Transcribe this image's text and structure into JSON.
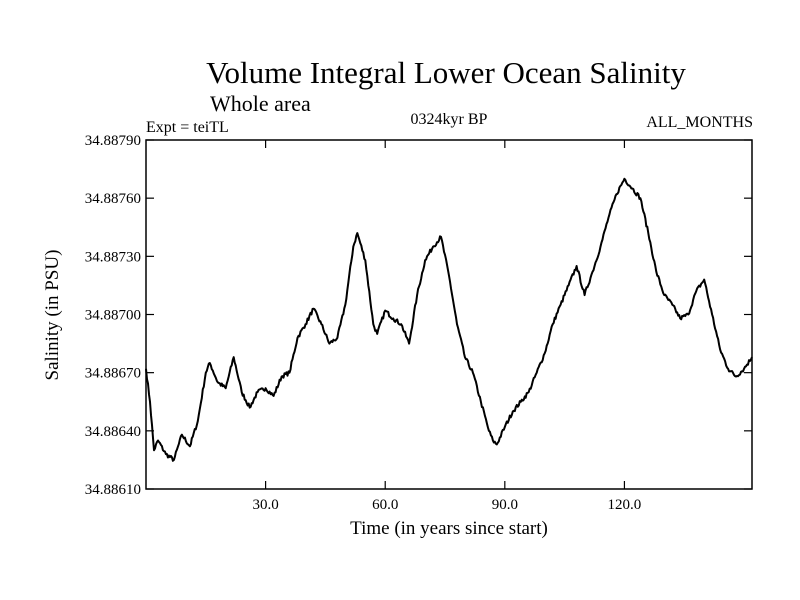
{
  "chart_data": {
    "type": "line",
    "title": "Volume Integral Lower Ocean Salinity",
    "subtitle": "Whole area",
    "header_left": "Expt = teiTL",
    "header_center": "0324kyr BP",
    "header_right": "ALL_MONTHS",
    "xlabel": "Time (in years since start)",
    "ylabel": "Salinity (in PSU)",
    "xlim": [
      0,
      152
    ],
    "ylim": [
      34.8861,
      34.8879
    ],
    "x_ticks": [
      30,
      60,
      90,
      120
    ],
    "x_tick_labels": [
      "30.0",
      "60.0",
      "90.0",
      "120.0"
    ],
    "y_ticks": [
      34.8861,
      34.8864,
      34.8867,
      34.887,
      34.8873,
      34.8876,
      34.8879
    ],
    "y_tick_labels": [
      "34.88610",
      "34.88640",
      "34.88670",
      "34.88700",
      "34.88730",
      "34.88760",
      "34.88790"
    ],
    "grid": false,
    "series": [
      {
        "name": "Salinity",
        "color": "#000000",
        "x": [
          0,
          1,
          2,
          3,
          5,
          7,
          9,
          11,
          13,
          15,
          16,
          18,
          20,
          22,
          24,
          26,
          28,
          30,
          32,
          34,
          36,
          38,
          40,
          42,
          44,
          46,
          48,
          50,
          52,
          53,
          55,
          57,
          58,
          60,
          62,
          64,
          66,
          68,
          70,
          72,
          74,
          76,
          78,
          80,
          82,
          84,
          86,
          87,
          88,
          90,
          92,
          94,
          96,
          98,
          100,
          102,
          104,
          106,
          108,
          110,
          112,
          114,
          116,
          118,
          120,
          122,
          124,
          126,
          128,
          130,
          132,
          134,
          136,
          138,
          140,
          142,
          144,
          146,
          148,
          150,
          152
        ],
        "values": [
          34.88672,
          34.88655,
          34.8863,
          34.88635,
          34.88628,
          34.88625,
          34.88638,
          34.88632,
          34.88645,
          34.8867,
          34.88675,
          34.88665,
          34.88662,
          34.88678,
          34.8866,
          34.88652,
          34.8866,
          34.88662,
          34.88658,
          34.88668,
          34.8867,
          34.88688,
          34.88695,
          34.88703,
          34.88695,
          34.88685,
          34.88688,
          34.88705,
          34.88735,
          34.88742,
          34.88728,
          34.88695,
          34.8869,
          34.88702,
          34.88698,
          34.88695,
          34.88685,
          34.8871,
          34.88728,
          34.88735,
          34.8874,
          34.8872,
          34.88695,
          34.88678,
          34.8867,
          34.88655,
          34.8864,
          34.88635,
          34.88633,
          34.88642,
          34.8865,
          34.88655,
          34.8866,
          34.8867,
          34.8868,
          34.88695,
          34.88705,
          34.88715,
          34.88725,
          34.8871,
          34.88722,
          34.88735,
          34.8875,
          34.88762,
          34.8877,
          34.88765,
          34.8876,
          34.88742,
          34.88722,
          34.8871,
          34.88705,
          34.88698,
          34.887,
          34.88712,
          34.88718,
          34.887,
          34.88682,
          34.88672,
          34.88668,
          34.88672,
          34.88678
        ]
      }
    ]
  }
}
